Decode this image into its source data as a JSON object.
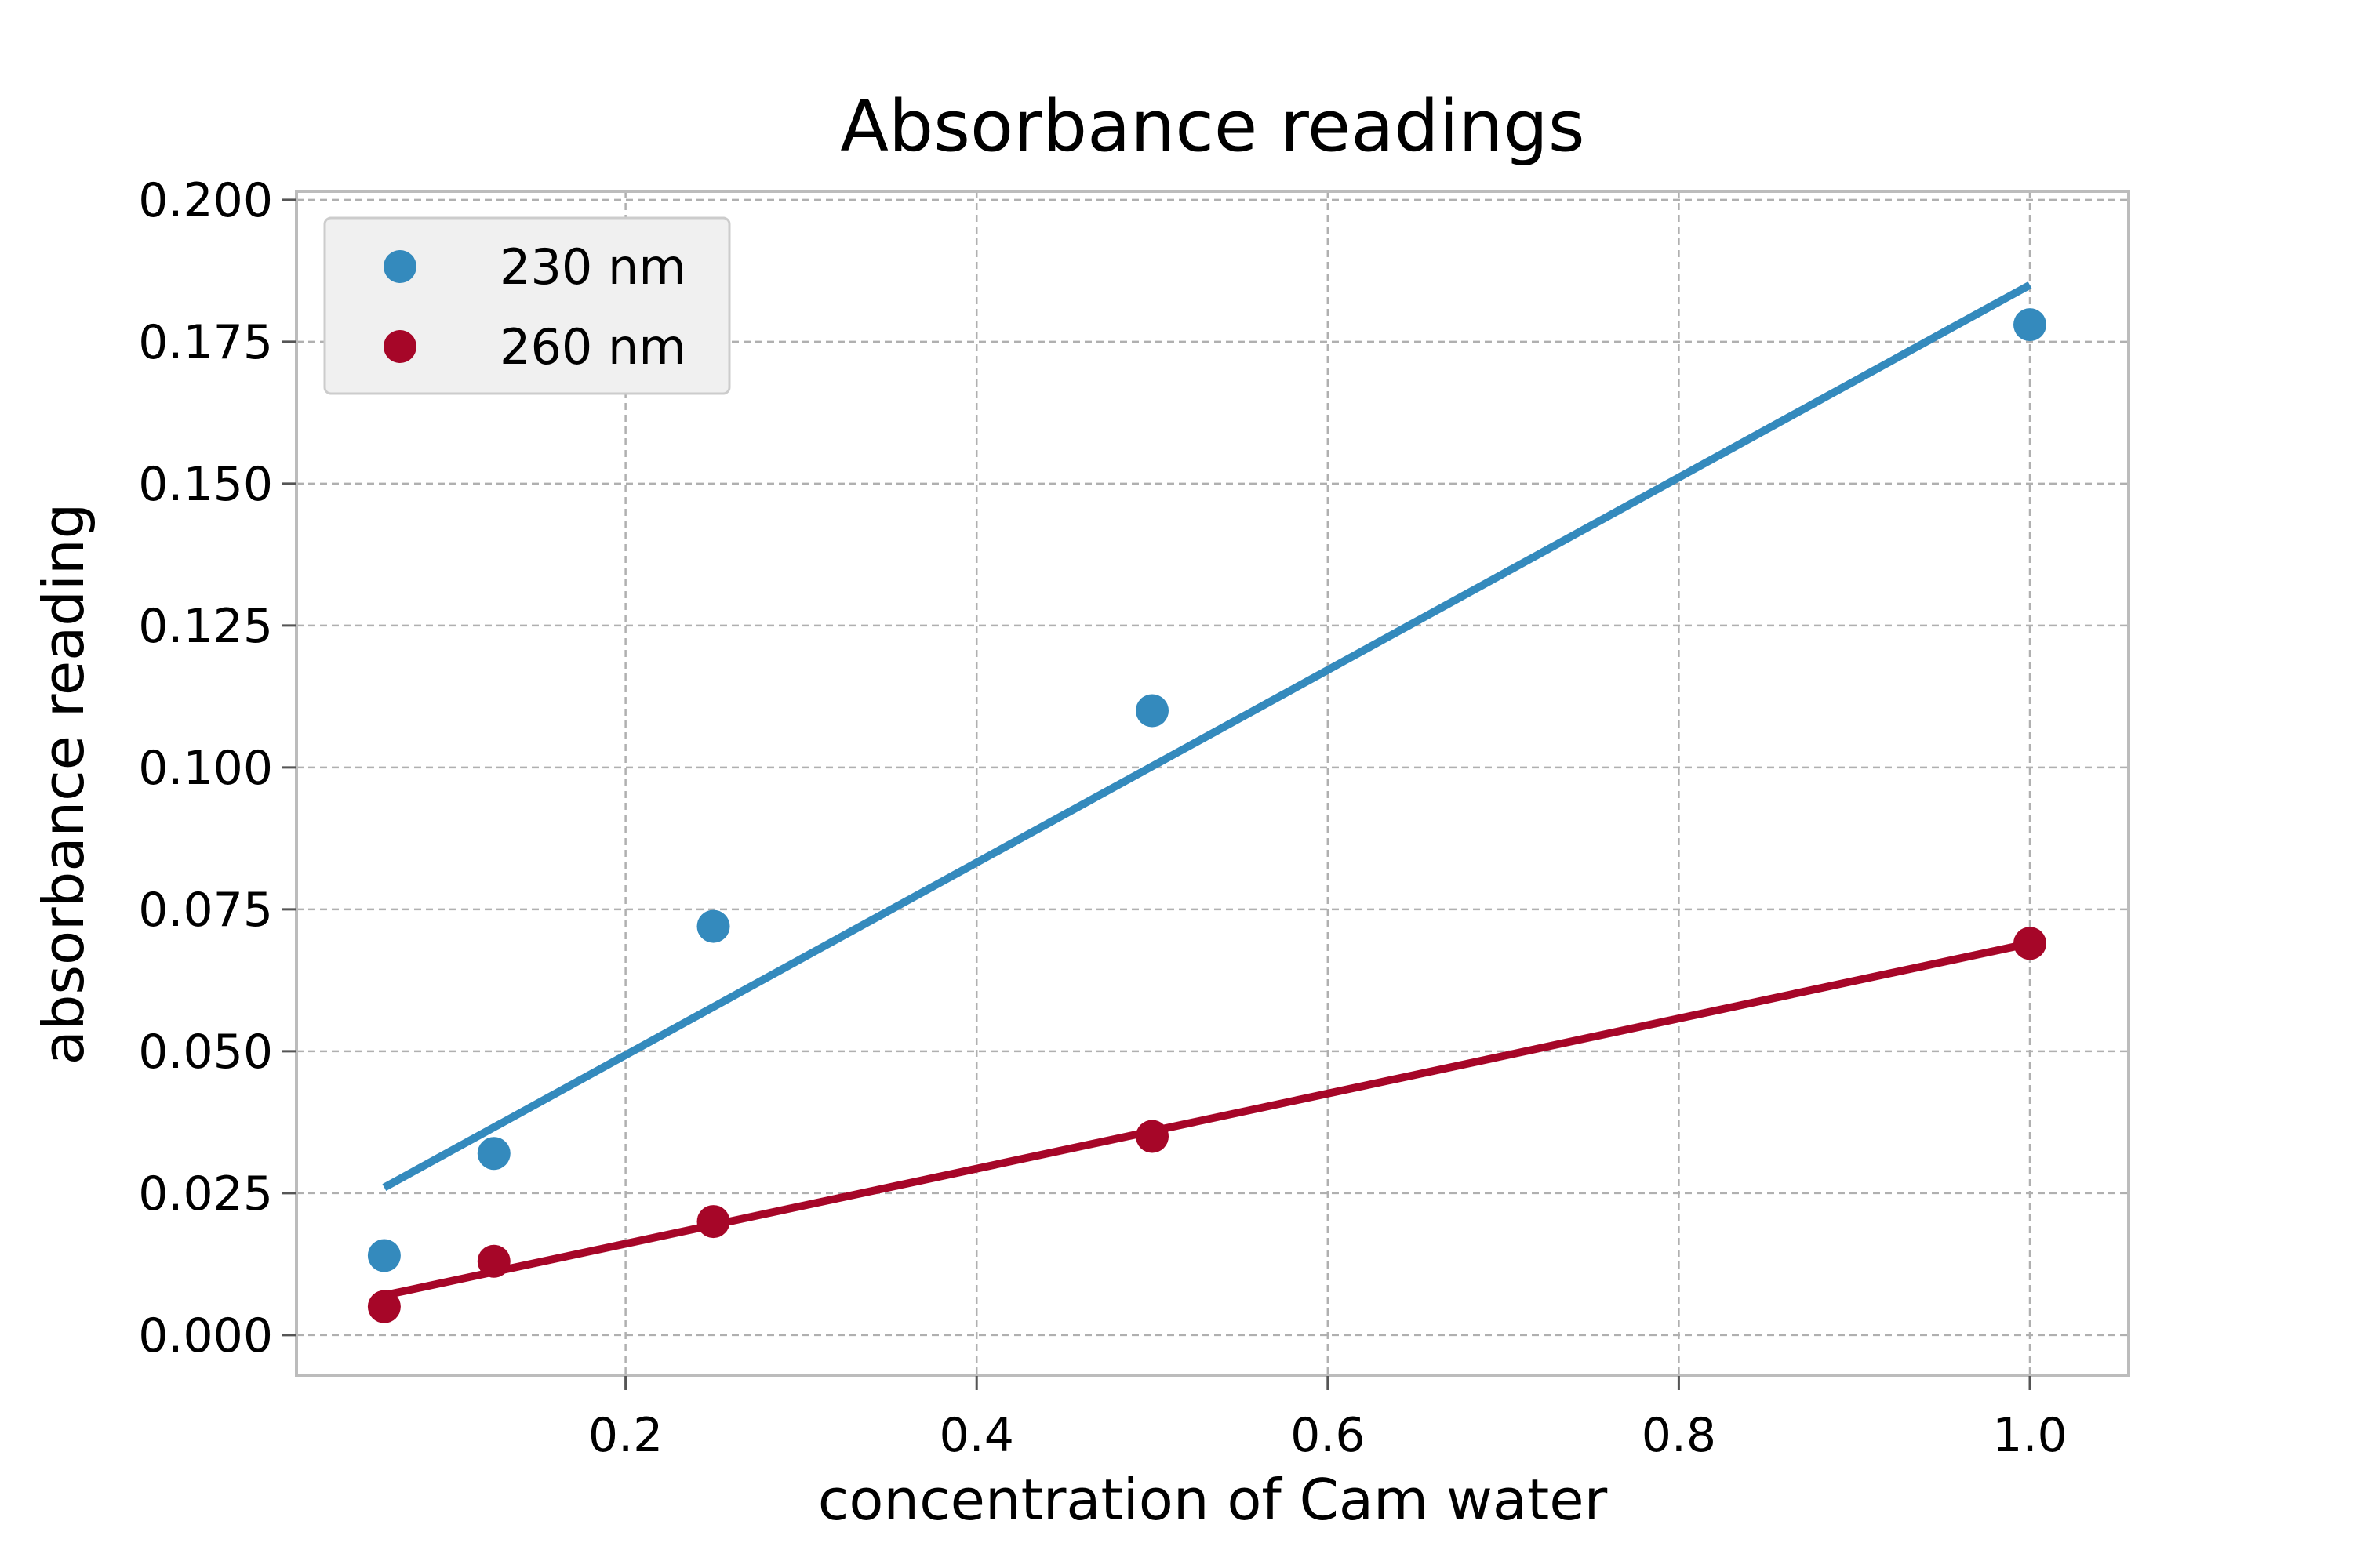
{
  "chart_data": {
    "type": "scatter",
    "title": "Absorbance readings",
    "xlabel": "concentration of Cam water",
    "ylabel": "absorbance reading",
    "xlim": [
      0.0125,
      1.0563
    ],
    "ylim": [
      -0.0072,
      0.2015
    ],
    "xticks": [
      0.2,
      0.4,
      0.6,
      0.8,
      1.0
    ],
    "xtick_labels": [
      "0.2",
      "0.4",
      "0.6",
      "0.8",
      "1.0"
    ],
    "yticks": [
      0.0,
      0.025,
      0.05,
      0.075,
      0.1,
      0.125,
      0.15,
      0.175,
      0.2
    ],
    "ytick_labels": [
      "0.000",
      "0.025",
      "0.050",
      "0.075",
      "0.100",
      "0.125",
      "0.150",
      "0.175",
      "0.200"
    ],
    "grid": true,
    "legend_position": "top-left",
    "series": [
      {
        "name": "230 nm",
        "color": "#348ABD",
        "x": [
          0.0625,
          0.125,
          0.25,
          0.5,
          1.0
        ],
        "y": [
          0.014,
          0.032,
          0.072,
          0.11,
          0.178
        ],
        "fit_line": {
          "x": [
            0.0625,
            1.0
          ],
          "y": [
            0.026,
            0.185
          ]
        }
      },
      {
        "name": "260 nm",
        "color": "#A60628",
        "x": [
          0.0625,
          0.125,
          0.25,
          0.5,
          1.0
        ],
        "y": [
          0.005,
          0.013,
          0.02,
          0.035,
          0.069
        ],
        "fit_line": {
          "x": [
            0.0625,
            1.0
          ],
          "y": [
            0.007,
            0.069
          ]
        }
      }
    ]
  }
}
